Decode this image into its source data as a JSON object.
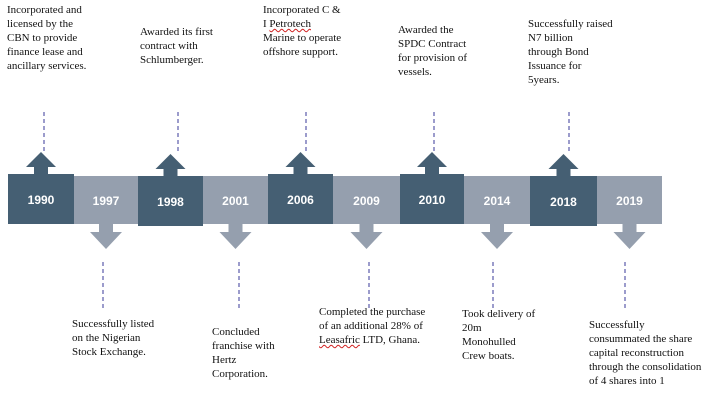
{
  "milestones": [
    {
      "year": "1990",
      "side": "top",
      "color": "dark",
      "lines": [
        "Incorporated and",
        "licensed by the",
        "CBN to provide",
        "finance lease and",
        "ancillary services."
      ]
    },
    {
      "year": "1997",
      "side": "bottom",
      "color": "light",
      "lines": [
        "Successfully listed",
        "on the Nigerian",
        "Stock Exchange."
      ]
    },
    {
      "year": "1998",
      "side": "top",
      "color": "dark",
      "lines": [
        "Awarded its first",
        "contract with",
        "Schlumberger."
      ]
    },
    {
      "year": "2001",
      "side": "bottom",
      "color": "light",
      "lines": [
        "Concluded",
        "franchise with",
        "Hertz",
        "Corporation."
      ]
    },
    {
      "year": "2006",
      "side": "top",
      "color": "dark",
      "lines": [
        "Incorporated C &",
        "I Petrotech",
        "Marine to operate",
        "offshore support."
      ]
    },
    {
      "year": "2009",
      "side": "bottom",
      "color": "light",
      "lines": [
        "Completed the purchase",
        "of an additional 28% of",
        "Leasafric LTD, Ghana."
      ]
    },
    {
      "year": "2010",
      "side": "top",
      "color": "dark",
      "lines": [
        "Awarded the",
        "SPDC Contract",
        "for provision of",
        "vessels."
      ]
    },
    {
      "year": "2014",
      "side": "bottom",
      "color": "light",
      "lines": [
        "Took delivery of",
        "20m",
        "Monohulled",
        "Crew boats."
      ]
    },
    {
      "year": "2018",
      "side": "top",
      "color": "dark",
      "lines": [
        "Successfully raised",
        "N7 billion",
        "through Bond",
        "Issuance for",
        "5years."
      ]
    },
    {
      "year": "2019",
      "side": "bottom",
      "color": "light",
      "lines": [
        "Successfully",
        "consummated the share",
        "capital reconstruction",
        "through the consolidation",
        "of 4 shares into 1"
      ]
    }
  ],
  "colors": {
    "dark": "#455f73",
    "light": "#959fae",
    "dash": "#3a3a9a"
  }
}
